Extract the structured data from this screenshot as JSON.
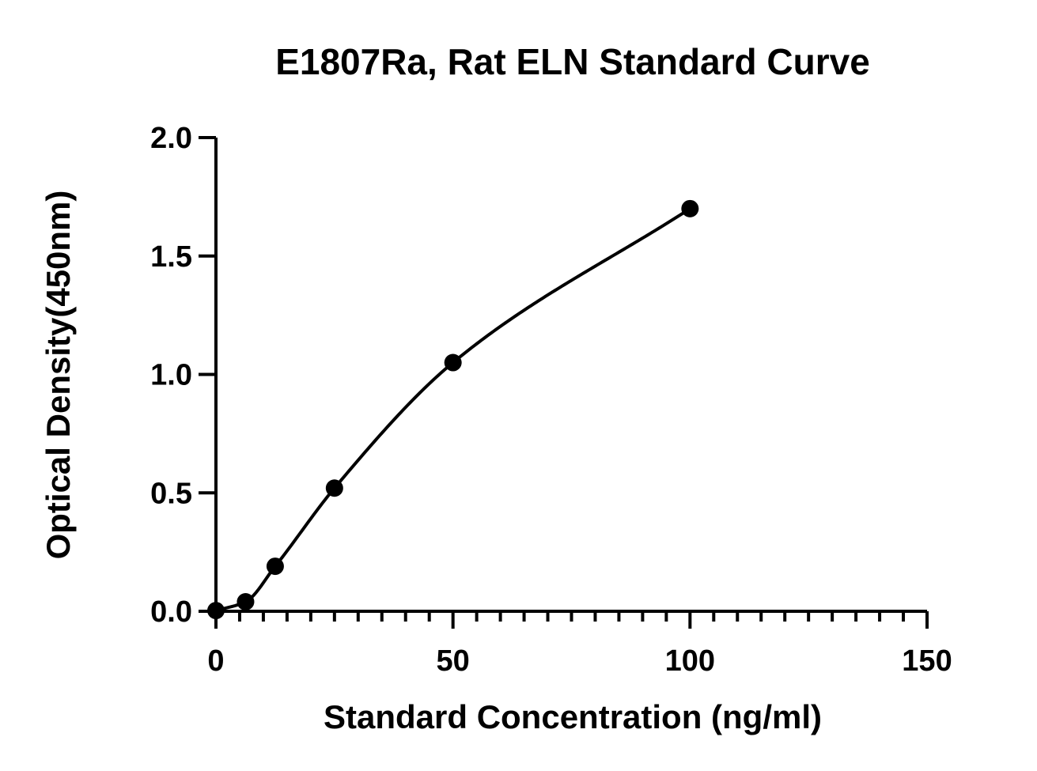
{
  "chart_data": {
    "type": "scatter",
    "title": "E1807Ra, Rat ELN Standard Curve",
    "xlabel": "Standard Concentration (ng/ml)",
    "ylabel": "Optical Density(450nm)",
    "xlim": [
      0,
      150
    ],
    "ylim": [
      0,
      2.0
    ],
    "x_ticks": [
      0,
      50,
      100,
      150
    ],
    "x_tick_labels": [
      "0",
      "50",
      "100",
      "150"
    ],
    "x_minor_step": 5,
    "y_ticks": [
      0,
      0.5,
      1.0,
      1.5,
      2.0
    ],
    "y_tick_labels": [
      "0.0",
      "0.5",
      "1.0",
      "1.5",
      "2.0"
    ],
    "grid": false,
    "series": [
      {
        "x": [
          0,
          6.25,
          12.5,
          25,
          50,
          100
        ],
        "y": [
          0.003,
          0.04,
          0.19,
          0.52,
          1.05,
          1.7
        ],
        "marker": "circle",
        "color": "#000000",
        "fit_line": true
      }
    ]
  }
}
